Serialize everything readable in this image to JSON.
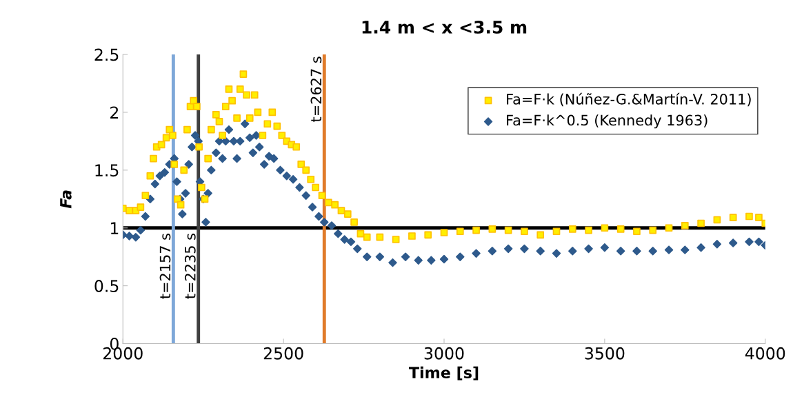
{
  "chart_data": {
    "type": "scatter",
    "title": "1.4 m < x <3.5 m",
    "xlabel": "Time [s]",
    "ylabel": "Fa",
    "xlim": [
      2000,
      4000
    ],
    "xticks": [
      2000,
      2500,
      3000,
      3500,
      4000
    ],
    "ylim": [
      0,
      2.5
    ],
    "yticks": [
      0,
      0.5,
      1,
      1.5,
      2,
      2.5
    ],
    "grid": false,
    "legend": "top right",
    "series": [
      {
        "name": "Fa=F·k (Núñez-G.&Martín-V. 2011)",
        "color": "#ffc000",
        "marker": "square",
        "x": [
          2000,
          2020,
          2040,
          2055,
          2070,
          2085,
          2095,
          2105,
          2120,
          2135,
          2145,
          2155,
          2160,
          2170,
          2180,
          2190,
          2200,
          2210,
          2220,
          2230,
          2237,
          2245,
          2255,
          2265,
          2275,
          2290,
          2300,
          2310,
          2320,
          2330,
          2340,
          2355,
          2365,
          2375,
          2385,
          2395,
          2410,
          2420,
          2435,
          2450,
          2465,
          2480,
          2495,
          2510,
          2525,
          2540,
          2555,
          2570,
          2585,
          2600,
          2620,
          2640,
          2660,
          2680,
          2700,
          2720,
          2740,
          2760,
          2800,
          2850,
          2900,
          2950,
          3000,
          3050,
          3100,
          3150,
          3200,
          3250,
          3300,
          3350,
          3400,
          3450,
          3500,
          3550,
          3600,
          3650,
          3700,
          3750,
          3800,
          3850,
          3900,
          3950,
          3980,
          4000
        ],
        "values": [
          1.17,
          1.15,
          1.15,
          1.18,
          1.28,
          1.45,
          1.6,
          1.7,
          1.72,
          1.78,
          1.85,
          1.8,
          1.55,
          1.25,
          1.2,
          1.5,
          1.85,
          2.05,
          2.1,
          2.05,
          1.7,
          1.35,
          1.25,
          1.6,
          1.85,
          1.98,
          1.92,
          1.8,
          2.05,
          2.2,
          2.1,
          1.95,
          2.2,
          2.33,
          2.15,
          1.95,
          2.15,
          2.0,
          1.8,
          1.9,
          2.0,
          1.88,
          1.8,
          1.75,
          1.72,
          1.7,
          1.55,
          1.5,
          1.42,
          1.35,
          1.28,
          1.22,
          1.2,
          1.15,
          1.12,
          1.05,
          0.95,
          0.92,
          0.92,
          0.9,
          0.93,
          0.94,
          0.96,
          0.97,
          0.98,
          0.99,
          0.98,
          0.97,
          0.94,
          0.97,
          0.99,
          0.98,
          1.0,
          0.99,
          0.97,
          0.98,
          1.0,
          1.02,
          1.04,
          1.07,
          1.09,
          1.1,
          1.09,
          1.04
        ]
      },
      {
        "name": "Fa=F·k^0.5 (Kennedy 1963)",
        "color": "#2e5a8c",
        "marker": "diamond",
        "x": [
          2000,
          2020,
          2040,
          2055,
          2070,
          2085,
          2100,
          2115,
          2130,
          2145,
          2160,
          2168,
          2178,
          2185,
          2195,
          2205,
          2215,
          2225,
          2235,
          2240,
          2250,
          2258,
          2265,
          2275,
          2290,
          2300,
          2310,
          2320,
          2330,
          2345,
          2355,
          2365,
          2380,
          2395,
          2405,
          2415,
          2425,
          2440,
          2455,
          2470,
          2490,
          2510,
          2530,
          2550,
          2570,
          2590,
          2610,
          2627,
          2650,
          2670,
          2690,
          2710,
          2730,
          2760,
          2800,
          2840,
          2880,
          2920,
          2960,
          3000,
          3050,
          3100,
          3150,
          3200,
          3250,
          3300,
          3350,
          3400,
          3450,
          3500,
          3550,
          3600,
          3650,
          3700,
          3750,
          3800,
          3850,
          3900,
          3950,
          3980,
          4000
        ],
        "values": [
          0.94,
          0.93,
          0.92,
          0.98,
          1.1,
          1.25,
          1.38,
          1.45,
          1.48,
          1.55,
          1.6,
          1.4,
          1.25,
          1.12,
          1.3,
          1.55,
          1.7,
          1.8,
          1.75,
          1.4,
          1.25,
          1.05,
          1.3,
          1.5,
          1.65,
          1.75,
          1.6,
          1.75,
          1.85,
          1.75,
          1.6,
          1.75,
          1.9,
          1.78,
          1.65,
          1.8,
          1.7,
          1.55,
          1.62,
          1.6,
          1.5,
          1.45,
          1.42,
          1.35,
          1.28,
          1.18,
          1.1,
          1.05,
          1.02,
          0.95,
          0.9,
          0.88,
          0.82,
          0.75,
          0.75,
          0.7,
          0.75,
          0.72,
          0.72,
          0.73,
          0.75,
          0.78,
          0.8,
          0.82,
          0.82,
          0.8,
          0.78,
          0.8,
          0.82,
          0.83,
          0.8,
          0.8,
          0.8,
          0.81,
          0.81,
          0.83,
          0.86,
          0.87,
          0.88,
          0.88,
          0.85
        ]
      }
    ],
    "ref_lines": [
      {
        "axis": "y",
        "value": 1,
        "color": "#000000"
      },
      {
        "axis": "x",
        "value": 2157,
        "color": "#7ea7d8"
      },
      {
        "axis": "x",
        "value": 2235,
        "color": "#404040"
      },
      {
        "axis": "x",
        "value": 2627,
        "color": "#e07b2a"
      }
    ],
    "annotations": [
      {
        "text": "t=2157 s",
        "x": 2157,
        "y": 0.67
      },
      {
        "text": "t=2235 s",
        "x": 2235,
        "y": 0.67
      },
      {
        "text": "t=2627 s",
        "x": 2627,
        "y": 2.2
      }
    ]
  }
}
